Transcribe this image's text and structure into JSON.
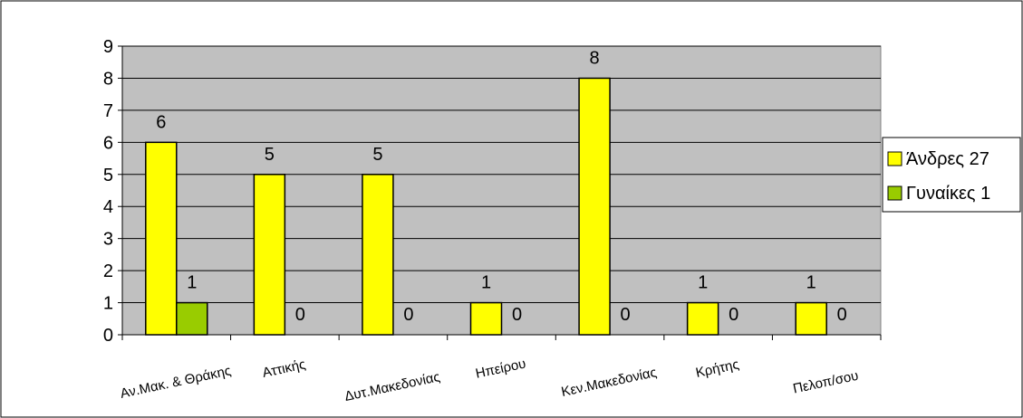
{
  "chart_data": {
    "type": "bar",
    "categories": [
      "Αν.Μακ. & Θράκης",
      "Αττικής",
      "Δυτ.Μακεδονίας",
      "Ηπείρου",
      "Κεν.Μακεδονίας",
      "Κρήτης",
      "Πελοπ/σου"
    ],
    "series": [
      {
        "name": "Άνδρες 27",
        "values": [
          6,
          5,
          5,
          1,
          8,
          1,
          1
        ],
        "color": "#ffff00"
      },
      {
        "name": "Γυναίκες 1",
        "values": [
          1,
          0,
          0,
          0,
          0,
          0,
          0
        ],
        "color": "#99cc00"
      }
    ],
    "ylim": [
      0,
      9
    ],
    "yticks": [
      0,
      1,
      2,
      3,
      4,
      5,
      6,
      7,
      8,
      9
    ],
    "plot_background": "#c0c0c0",
    "grid": true,
    "legend_position": "right",
    "title": "",
    "xlabel": "",
    "ylabel": ""
  }
}
